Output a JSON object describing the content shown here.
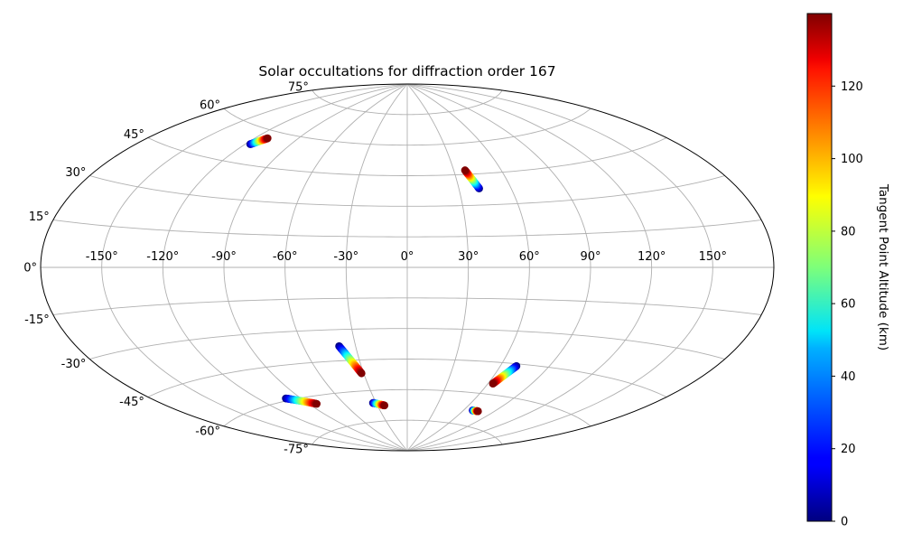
{
  "chart_data": {
    "type": "scatter",
    "projection": "aitoff",
    "title": "Solar occultations for diffraction order 167",
    "x_ticks": [
      "-150°",
      "-120°",
      "-90°",
      "-60°",
      "-30°",
      "0°",
      "30°",
      "60°",
      "90°",
      "120°",
      "150°"
    ],
    "x_tick_values": [
      -150,
      -120,
      -90,
      -60,
      -30,
      0,
      30,
      60,
      90,
      120,
      150
    ],
    "y_ticks": [
      "75°",
      "60°",
      "45°",
      "30°",
      "15°",
      "0°",
      "-15°",
      "-30°",
      "-45°",
      "-60°",
      "-75°"
    ],
    "y_tick_values": [
      75,
      60,
      45,
      30,
      15,
      0,
      -15,
      -30,
      -45,
      -60,
      -75
    ],
    "grid": true,
    "colorbar": {
      "label": "Tangent Point Altitude (km)",
      "colormap": "jet",
      "range": [
        0,
        140
      ],
      "ticks": [
        "0",
        "20",
        "40",
        "60",
        "80",
        "100",
        "120"
      ],
      "tick_values": [
        0,
        20,
        40,
        60,
        80,
        100,
        120
      ]
    },
    "series": [
      {
        "lon_start": -116.8,
        "lat_start": 53.2,
        "lon_end": -111.5,
        "lat_end": 56.8
      },
      {
        "lon_start": 41.7,
        "lat_start": 38.0,
        "lon_end": 37.2,
        "lat_end": 47.0
      },
      {
        "lon_start": -39.5,
        "lat_start": -38.0,
        "lon_end": -31.5,
        "lat_end": -51.5
      },
      {
        "lon_start": -101.0,
        "lat_start": -59.0,
        "lon_end": -83.5,
        "lat_end": -63.5
      },
      {
        "lon_start": -33.0,
        "lat_start": -66.0,
        "lon_end": -23.0,
        "lat_end": -67.5
      },
      {
        "lon_start": 70.0,
        "lat_start": -46.0,
        "lon_end": 63.5,
        "lat_end": -55.0
      },
      {
        "lon_start": 69.0,
        "lat_start": -68.0,
        "lon_end": 75.0,
        "lat_end": -68.0
      }
    ]
  }
}
